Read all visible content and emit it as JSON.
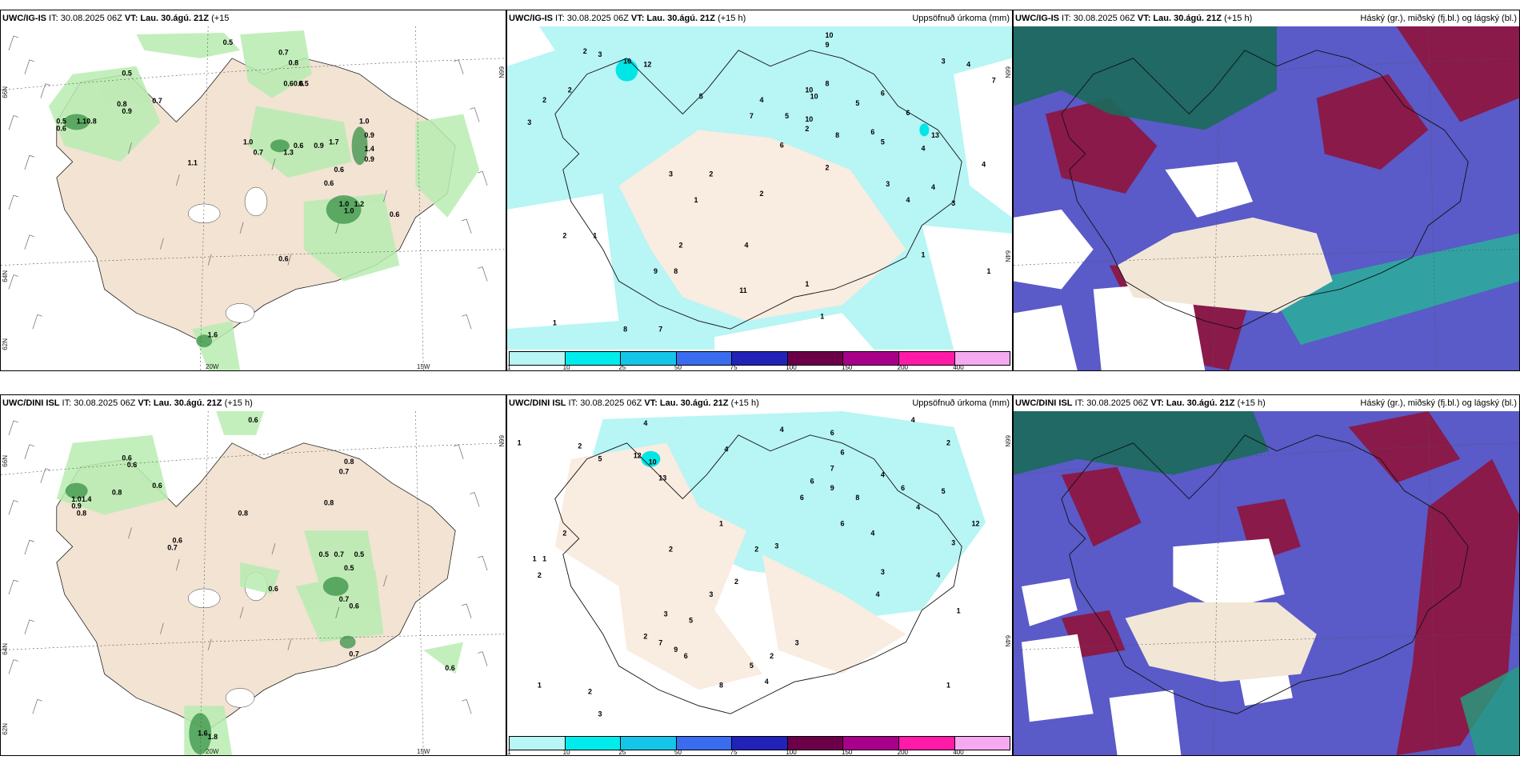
{
  "panels": {
    "p1": {
      "model": "UWC/IG-IS",
      "rest": " IT: 30.08.2025 06Z ",
      "vt_label": "VT:",
      "vt": "Lau. 30.ágú. 21Z",
      "lead": "(+15",
      "right": ""
    },
    "p2": {
      "model": "UWC/IG-IS",
      "rest": " IT: 30.08.2025 06Z ",
      "vt_label": "VT:",
      "vt": "Lau. 30.ágú. 21Z",
      "lead": "(+15 h)",
      "right": "Uppsöfnuð úrkoma (mm)"
    },
    "p3": {
      "model": "UWC/IG-IS",
      "rest": " IT: 30.08.2025 06Z ",
      "vt_label": "VT:",
      "vt": "Lau. 30.ágú. 21Z",
      "lead": "(+15 h)",
      "right": "Háský (gr.), miðský (fj.bl.) og lágský (bl.)"
    },
    "p4": {
      "model": "UWC/DINI ISL",
      "rest": " IT: 30.08.2025 06Z ",
      "vt_label": "VT:",
      "vt": "Lau. 30.ágú. 21Z",
      "lead": "(+15 h)",
      "right": ""
    },
    "p5": {
      "model": "UWC/DINI ISL",
      "rest": " IT: 30.08.2025 06Z ",
      "vt_label": "VT:",
      "vt": "Lau. 30.ágú. 21Z",
      "lead": "(+15 h)",
      "right": "Uppsöfnuð úrkoma (mm)"
    },
    "p6": {
      "model": "UWC/DINI ISL",
      "rest": " IT: 30.08.2025 06Z ",
      "vt_label": "VT:",
      "vt": "Lau. 30.ágú. 21Z",
      "lead": "(+15 h)",
      "right": "Háský (gr.), miðský (fj.bl.) og lágský (bl.)"
    }
  },
  "axes": {
    "lat66": "66N",
    "lat64": "64N",
    "lat62": "62N",
    "lon20": "20W",
    "lon15": "15W"
  },
  "colorbar": {
    "labels": [
      "1",
      "10",
      "25",
      "50",
      "75",
      "100",
      "150",
      "200",
      "400"
    ],
    "colors": [
      "#b8f5f5",
      "#00ecec",
      "#15c5e8",
      "#3a6cf0",
      "#2222b8",
      "#6b0049",
      "#a8008a",
      "#ff1aa8",
      "#f5aaf0"
    ]
  },
  "values": {
    "p1": [
      {
        "t": "0.5",
        "x": 0.44,
        "y": 0.03
      },
      {
        "t": "0.7",
        "x": 0.55,
        "y": 0.06
      },
      {
        "t": "0.8",
        "x": 0.57,
        "y": 0.09
      },
      {
        "t": "0.5",
        "x": 0.24,
        "y": 0.12
      },
      {
        "t": "0.6",
        "x": 0.56,
        "y": 0.15
      },
      {
        "t": "0.6",
        "x": 0.58,
        "y": 0.15
      },
      {
        "t": "0.5",
        "x": 0.59,
        "y": 0.15
      },
      {
        "t": "0.7",
        "x": 0.3,
        "y": 0.2
      },
      {
        "t": "0.8",
        "x": 0.23,
        "y": 0.21
      },
      {
        "t": "0.9",
        "x": 0.24,
        "y": 0.23
      },
      {
        "t": "0.5",
        "x": 0.11,
        "y": 0.26
      },
      {
        "t": "1.1",
        "x": 0.15,
        "y": 0.26
      },
      {
        "t": "0.8",
        "x": 0.17,
        "y": 0.26
      },
      {
        "t": "0.6",
        "x": 0.11,
        "y": 0.28
      },
      {
        "t": "1.0",
        "x": 0.71,
        "y": 0.26
      },
      {
        "t": "1.0",
        "x": 0.48,
        "y": 0.32
      },
      {
        "t": "0.7",
        "x": 0.5,
        "y": 0.35
      },
      {
        "t": "0.6",
        "x": 0.58,
        "y": 0.33
      },
      {
        "t": "1.3",
        "x": 0.56,
        "y": 0.35
      },
      {
        "t": "0.9",
        "x": 0.62,
        "y": 0.33
      },
      {
        "t": "1.7",
        "x": 0.65,
        "y": 0.32
      },
      {
        "t": "0.9",
        "x": 0.72,
        "y": 0.3
      },
      {
        "t": "1.4",
        "x": 0.72,
        "y": 0.34
      },
      {
        "t": "0.9",
        "x": 0.72,
        "y": 0.37
      },
      {
        "t": "1.1",
        "x": 0.37,
        "y": 0.38
      },
      {
        "t": "0.6",
        "x": 0.66,
        "y": 0.4
      },
      {
        "t": "0.6",
        "x": 0.64,
        "y": 0.44
      },
      {
        "t": "1.0",
        "x": 0.67,
        "y": 0.5
      },
      {
        "t": "1.2",
        "x": 0.7,
        "y": 0.5
      },
      {
        "t": "1.0",
        "x": 0.68,
        "y": 0.52
      },
      {
        "t": "0.6",
        "x": 0.77,
        "y": 0.53
      },
      {
        "t": "0.6",
        "x": 0.55,
        "y": 0.66
      },
      {
        "t": "1.6",
        "x": 0.41,
        "y": 0.88
      }
    ],
    "p2": [
      {
        "t": "10",
        "x": 0.63,
        "y": 0.01
      },
      {
        "t": "9",
        "x": 0.63,
        "y": 0.04
      },
      {
        "t": "2",
        "x": 0.15,
        "y": 0.06
      },
      {
        "t": "3",
        "x": 0.18,
        "y": 0.07
      },
      {
        "t": "10",
        "x": 0.23,
        "y": 0.09
      },
      {
        "t": "12",
        "x": 0.27,
        "y": 0.1
      },
      {
        "t": "3",
        "x": 0.86,
        "y": 0.09
      },
      {
        "t": "4",
        "x": 0.91,
        "y": 0.1
      },
      {
        "t": "7",
        "x": 0.96,
        "y": 0.15
      },
      {
        "t": "8",
        "x": 0.63,
        "y": 0.16
      },
      {
        "t": "10",
        "x": 0.59,
        "y": 0.18
      },
      {
        "t": "2",
        "x": 0.12,
        "y": 0.18
      },
      {
        "t": "2",
        "x": 0.07,
        "y": 0.21
      },
      {
        "t": "5",
        "x": 0.38,
        "y": 0.2
      },
      {
        "t": "4",
        "x": 0.5,
        "y": 0.21
      },
      {
        "t": "10",
        "x": 0.6,
        "y": 0.2
      },
      {
        "t": "5",
        "x": 0.69,
        "y": 0.22
      },
      {
        "t": "6",
        "x": 0.74,
        "y": 0.19
      },
      {
        "t": "7",
        "x": 0.48,
        "y": 0.26
      },
      {
        "t": "5",
        "x": 0.55,
        "y": 0.26
      },
      {
        "t": "10",
        "x": 0.59,
        "y": 0.27
      },
      {
        "t": "6",
        "x": 0.79,
        "y": 0.25
      },
      {
        "t": "2",
        "x": 0.59,
        "y": 0.3
      },
      {
        "t": "3",
        "x": 0.04,
        "y": 0.28
      },
      {
        "t": "6",
        "x": 0.72,
        "y": 0.31
      },
      {
        "t": "8",
        "x": 0.65,
        "y": 0.32
      },
      {
        "t": "13",
        "x": 0.84,
        "y": 0.32
      },
      {
        "t": "6",
        "x": 0.54,
        "y": 0.35
      },
      {
        "t": "5",
        "x": 0.74,
        "y": 0.34
      },
      {
        "t": "4",
        "x": 0.82,
        "y": 0.36
      },
      {
        "t": "4",
        "x": 0.94,
        "y": 0.41
      },
      {
        "t": "2",
        "x": 0.63,
        "y": 0.42
      },
      {
        "t": "3",
        "x": 0.32,
        "y": 0.44
      },
      {
        "t": "2",
        "x": 0.4,
        "y": 0.44
      },
      {
        "t": "3",
        "x": 0.75,
        "y": 0.47
      },
      {
        "t": "4",
        "x": 0.84,
        "y": 0.48
      },
      {
        "t": "2",
        "x": 0.5,
        "y": 0.5
      },
      {
        "t": "1",
        "x": 0.37,
        "y": 0.52
      },
      {
        "t": "4",
        "x": 0.79,
        "y": 0.52
      },
      {
        "t": "3",
        "x": 0.88,
        "y": 0.53
      },
      {
        "t": "2",
        "x": 0.11,
        "y": 0.63
      },
      {
        "t": "1",
        "x": 0.17,
        "y": 0.63
      },
      {
        "t": "2",
        "x": 0.34,
        "y": 0.66
      },
      {
        "t": "4",
        "x": 0.47,
        "y": 0.66
      },
      {
        "t": "1",
        "x": 0.82,
        "y": 0.69
      },
      {
        "t": "9",
        "x": 0.29,
        "y": 0.74
      },
      {
        "t": "8",
        "x": 0.33,
        "y": 0.74
      },
      {
        "t": "1",
        "x": 0.59,
        "y": 0.78
      },
      {
        "t": "11",
        "x": 0.46,
        "y": 0.8
      },
      {
        "t": "1",
        "x": 0.95,
        "y": 0.74
      },
      {
        "t": "8",
        "x": 0.23,
        "y": 0.92
      },
      {
        "t": "7",
        "x": 0.3,
        "y": 0.92
      },
      {
        "t": "1",
        "x": 0.62,
        "y": 0.88
      },
      {
        "t": "1",
        "x": 0.09,
        "y": 0.9
      }
    ],
    "p4": [
      {
        "t": "0.6",
        "x": 0.49,
        "y": 0.01
      },
      {
        "t": "0.6",
        "x": 0.24,
        "y": 0.12
      },
      {
        "t": "0.6",
        "x": 0.25,
        "y": 0.14
      },
      {
        "t": "0.8",
        "x": 0.68,
        "y": 0.13
      },
      {
        "t": "0.7",
        "x": 0.67,
        "y": 0.16
      },
      {
        "t": "0.6",
        "x": 0.3,
        "y": 0.2
      },
      {
        "t": "0.8",
        "x": 0.22,
        "y": 0.22
      },
      {
        "t": "1.0",
        "x": 0.14,
        "y": 0.24
      },
      {
        "t": "1.4",
        "x": 0.16,
        "y": 0.24
      },
      {
        "t": "0.9",
        "x": 0.14,
        "y": 0.26
      },
      {
        "t": "0.8",
        "x": 0.15,
        "y": 0.28
      },
      {
        "t": "0.8",
        "x": 0.47,
        "y": 0.28
      },
      {
        "t": "0.8",
        "x": 0.64,
        "y": 0.25
      },
      {
        "t": "0.6",
        "x": 0.34,
        "y": 0.36
      },
      {
        "t": "0.7",
        "x": 0.33,
        "y": 0.38
      },
      {
        "t": "0.5",
        "x": 0.63,
        "y": 0.4
      },
      {
        "t": "0.7",
        "x": 0.66,
        "y": 0.4
      },
      {
        "t": "0.5",
        "x": 0.7,
        "y": 0.4
      },
      {
        "t": "0.5",
        "x": 0.68,
        "y": 0.44
      },
      {
        "t": "0.6",
        "x": 0.53,
        "y": 0.5
      },
      {
        "t": "0.7",
        "x": 0.67,
        "y": 0.53
      },
      {
        "t": "0.6",
        "x": 0.69,
        "y": 0.55
      },
      {
        "t": "0.7",
        "x": 0.69,
        "y": 0.69
      },
      {
        "t": "0.6",
        "x": 0.88,
        "y": 0.73
      },
      {
        "t": "1.6",
        "x": 0.39,
        "y": 0.92
      },
      {
        "t": "1.8",
        "x": 0.41,
        "y": 0.93
      }
    ],
    "p5": [
      {
        "t": "4",
        "x": 0.27,
        "y": 0.02
      },
      {
        "t": "4",
        "x": 0.54,
        "y": 0.04
      },
      {
        "t": "6",
        "x": 0.64,
        "y": 0.05
      },
      {
        "t": "4",
        "x": 0.8,
        "y": 0.01
      },
      {
        "t": "1",
        "x": 0.02,
        "y": 0.08
      },
      {
        "t": "2",
        "x": 0.14,
        "y": 0.09
      },
      {
        "t": "2",
        "x": 0.87,
        "y": 0.08
      },
      {
        "t": "4",
        "x": 0.43,
        "y": 0.1
      },
      {
        "t": "6",
        "x": 0.66,
        "y": 0.11
      },
      {
        "t": "5",
        "x": 0.18,
        "y": 0.13
      },
      {
        "t": "12",
        "x": 0.25,
        "y": 0.12
      },
      {
        "t": "10",
        "x": 0.28,
        "y": 0.14
      },
      {
        "t": "7",
        "x": 0.64,
        "y": 0.16
      },
      {
        "t": "6",
        "x": 0.6,
        "y": 0.2
      },
      {
        "t": "4",
        "x": 0.74,
        "y": 0.18
      },
      {
        "t": "13",
        "x": 0.3,
        "y": 0.19
      },
      {
        "t": "9",
        "x": 0.64,
        "y": 0.22
      },
      {
        "t": "6",
        "x": 0.78,
        "y": 0.22
      },
      {
        "t": "5",
        "x": 0.86,
        "y": 0.23
      },
      {
        "t": "6",
        "x": 0.58,
        "y": 0.25
      },
      {
        "t": "8",
        "x": 0.69,
        "y": 0.25
      },
      {
        "t": "4",
        "x": 0.81,
        "y": 0.28
      },
      {
        "t": "12",
        "x": 0.92,
        "y": 0.33
      },
      {
        "t": "1",
        "x": 0.42,
        "y": 0.33
      },
      {
        "t": "2",
        "x": 0.11,
        "y": 0.36
      },
      {
        "t": "6",
        "x": 0.66,
        "y": 0.33
      },
      {
        "t": "4",
        "x": 0.72,
        "y": 0.36
      },
      {
        "t": "3",
        "x": 0.53,
        "y": 0.4
      },
      {
        "t": "2",
        "x": 0.49,
        "y": 0.41
      },
      {
        "t": "3",
        "x": 0.88,
        "y": 0.39
      },
      {
        "t": "2",
        "x": 0.32,
        "y": 0.41
      },
      {
        "t": "1",
        "x": 0.05,
        "y": 0.44
      },
      {
        "t": "1",
        "x": 0.07,
        "y": 0.44
      },
      {
        "t": "2",
        "x": 0.06,
        "y": 0.49
      },
      {
        "t": "3",
        "x": 0.74,
        "y": 0.48
      },
      {
        "t": "4",
        "x": 0.85,
        "y": 0.49
      },
      {
        "t": "2",
        "x": 0.45,
        "y": 0.51
      },
      {
        "t": "3",
        "x": 0.4,
        "y": 0.55
      },
      {
        "t": "1",
        "x": 0.89,
        "y": 0.6
      },
      {
        "t": "4",
        "x": 0.73,
        "y": 0.55
      },
      {
        "t": "3",
        "x": 0.31,
        "y": 0.61
      },
      {
        "t": "5",
        "x": 0.36,
        "y": 0.63
      },
      {
        "t": "2",
        "x": 0.27,
        "y": 0.68
      },
      {
        "t": "7",
        "x": 0.3,
        "y": 0.7
      },
      {
        "t": "3",
        "x": 0.57,
        "y": 0.7
      },
      {
        "t": "9",
        "x": 0.33,
        "y": 0.72
      },
      {
        "t": "6",
        "x": 0.35,
        "y": 0.74
      },
      {
        "t": "2",
        "x": 0.52,
        "y": 0.74
      },
      {
        "t": "5",
        "x": 0.48,
        "y": 0.77
      },
      {
        "t": "8",
        "x": 0.42,
        "y": 0.83
      },
      {
        "t": "4",
        "x": 0.51,
        "y": 0.82
      },
      {
        "t": "1",
        "x": 0.06,
        "y": 0.83
      },
      {
        "t": "2",
        "x": 0.16,
        "y": 0.85
      },
      {
        "t": "3",
        "x": 0.18,
        "y": 0.92
      },
      {
        "t": "1",
        "x": 0.87,
        "y": 0.83
      }
    ]
  }
}
